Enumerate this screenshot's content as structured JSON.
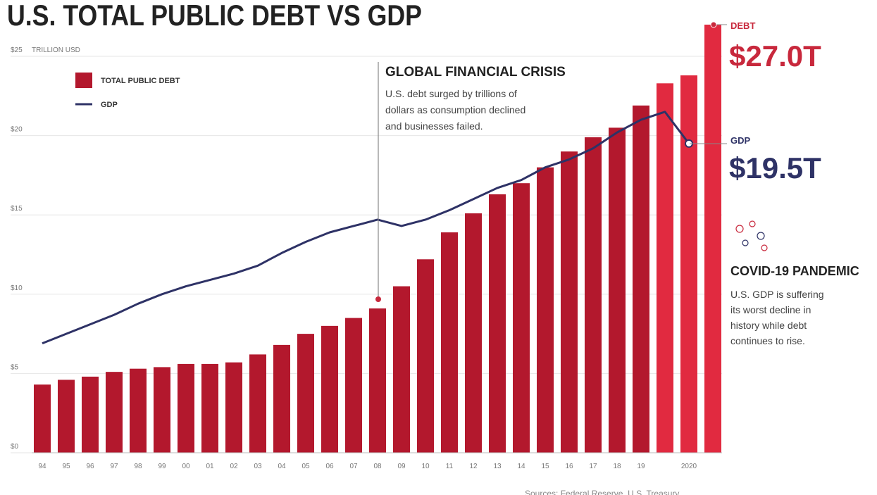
{
  "chart_data": {
    "type": "bar_line",
    "title": "U.S. TOTAL PUBLIC DEBT VS GDP",
    "y_axis_label": "TRILLION USD",
    "categories": [
      "94",
      "95",
      "96",
      "97",
      "98",
      "99",
      "00",
      "01",
      "02",
      "03",
      "04",
      "05",
      "06",
      "07",
      "08",
      "09",
      "10",
      "11",
      "12",
      "13",
      "14",
      "15",
      "16",
      "17",
      "18",
      "19",
      null,
      "2020",
      null
    ],
    "series": [
      {
        "name": "TOTAL PUBLIC DEBT",
        "type": "bar",
        "color": "#b3182d",
        "colors": [
          "#b3182d",
          "#b3182d",
          "#b3182d",
          "#b3182d",
          "#b3182d",
          "#b3182d",
          "#b3182d",
          "#b3182d",
          "#b3182d",
          "#b3182d",
          "#b3182d",
          "#b3182d",
          "#b3182d",
          "#b3182d",
          "#b3182d",
          "#b3182d",
          "#b3182d",
          "#b3182d",
          "#b3182d",
          "#b3182d",
          "#b3182d",
          "#b3182d",
          "#b3182d",
          "#b3182d",
          "#b3182d",
          "#b3182d",
          "#e12a40",
          "#e12a40",
          "#e12a40"
        ],
        "values": [
          4.3,
          4.6,
          4.8,
          5.1,
          5.3,
          5.4,
          5.6,
          5.6,
          5.7,
          6.2,
          6.8,
          7.5,
          8.0,
          8.5,
          9.1,
          10.5,
          12.2,
          13.9,
          15.1,
          16.3,
          17.0,
          18.0,
          19.0,
          19.9,
          20.5,
          21.9,
          23.3,
          23.8,
          27.0
        ]
      },
      {
        "name": "GDP",
        "type": "line",
        "color": "#2e3266",
        "values": [
          6.9,
          7.5,
          8.1,
          8.7,
          9.4,
          10.0,
          10.5,
          10.9,
          11.3,
          11.8,
          12.6,
          13.3,
          13.9,
          14.3,
          14.7,
          14.3,
          14.7,
          15.3,
          16.0,
          16.7,
          17.2,
          18.0,
          18.5,
          19.2,
          20.2,
          21.0,
          21.5,
          19.5,
          null
        ]
      }
    ],
    "ylim": [
      0,
      27
    ],
    "yticks": [
      {
        "value": 0,
        "label": "$0"
      },
      {
        "value": 5,
        "label": "$5"
      },
      {
        "value": 10,
        "label": "$10"
      },
      {
        "value": 15,
        "label": "$15"
      },
      {
        "value": 20,
        "label": "$20"
      },
      {
        "value": 25,
        "label": "$25"
      }
    ],
    "grid": true,
    "legend": "top-left",
    "annotations": {
      "crisis_title": "GLOBAL FINANCIAL CRISIS",
      "crisis_text": [
        "U.S. debt surged by trillions of",
        "dollars as consumption declined",
        "and businesses failed."
      ],
      "covid_title": "COVID-19 PANDEMIC",
      "covid_text": [
        "U.S. GDP is suffering",
        "its worst decline in",
        "history while debt",
        "continues to rise."
      ],
      "debt_label": "DEBT",
      "debt_value": "$27.0T",
      "gdp_label": "GDP",
      "gdp_value": "$19.5T"
    },
    "source": "Sources: Federal Reserve, U.S. Treasury"
  }
}
